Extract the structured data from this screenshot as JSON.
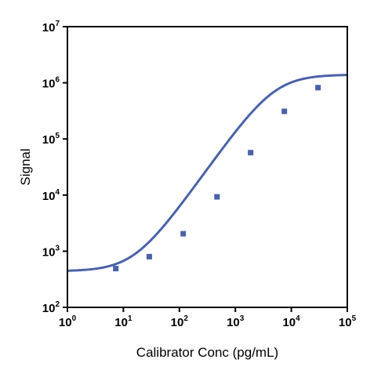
{
  "chart_data": {
    "type": "scatter",
    "title": "",
    "xlabel": "Calibrator Conc (pg/mL)",
    "ylabel": "Signal",
    "xscale": "log",
    "yscale": "log",
    "xlim": [
      1,
      100000
    ],
    "ylim": [
      100,
      10000000
    ],
    "x_ticks": [
      1,
      10,
      100,
      1000,
      10000,
      100000
    ],
    "y_ticks": [
      100,
      1000,
      10000,
      100000,
      1000000,
      10000000
    ],
    "x_tick_labels": [
      {
        "base": "10",
        "exp": "0"
      },
      {
        "base": "10",
        "exp": "1"
      },
      {
        "base": "10",
        "exp": "2"
      },
      {
        "base": "10",
        "exp": "3"
      },
      {
        "base": "10",
        "exp": "4"
      },
      {
        "base": "10",
        "exp": "5"
      }
    ],
    "y_tick_labels": [
      {
        "base": "10",
        "exp": "2"
      },
      {
        "base": "10",
        "exp": "3"
      },
      {
        "base": "10",
        "exp": "4"
      },
      {
        "base": "10",
        "exp": "5"
      },
      {
        "base": "10",
        "exp": "6"
      },
      {
        "base": "10",
        "exp": "7"
      }
    ],
    "grid": false,
    "legend": "none",
    "series": [
      {
        "points": [
          {
            "x": 7.3,
            "y": 490
          },
          {
            "x": 29,
            "y": 800
          },
          {
            "x": 117,
            "y": 2050
          },
          {
            "x": 470,
            "y": 9300
          },
          {
            "x": 1875,
            "y": 57000
          },
          {
            "x": 7500,
            "y": 310000
          },
          {
            "x": 30000,
            "y": 820000
          }
        ],
        "marker": "square",
        "color": "#4a62a8"
      }
    ],
    "fit_curve": {
      "model": "4PL",
      "color": "#4a62a8",
      "bottom": 440,
      "top": 1400000,
      "ec50": 5000,
      "hill": 1.4
    }
  }
}
